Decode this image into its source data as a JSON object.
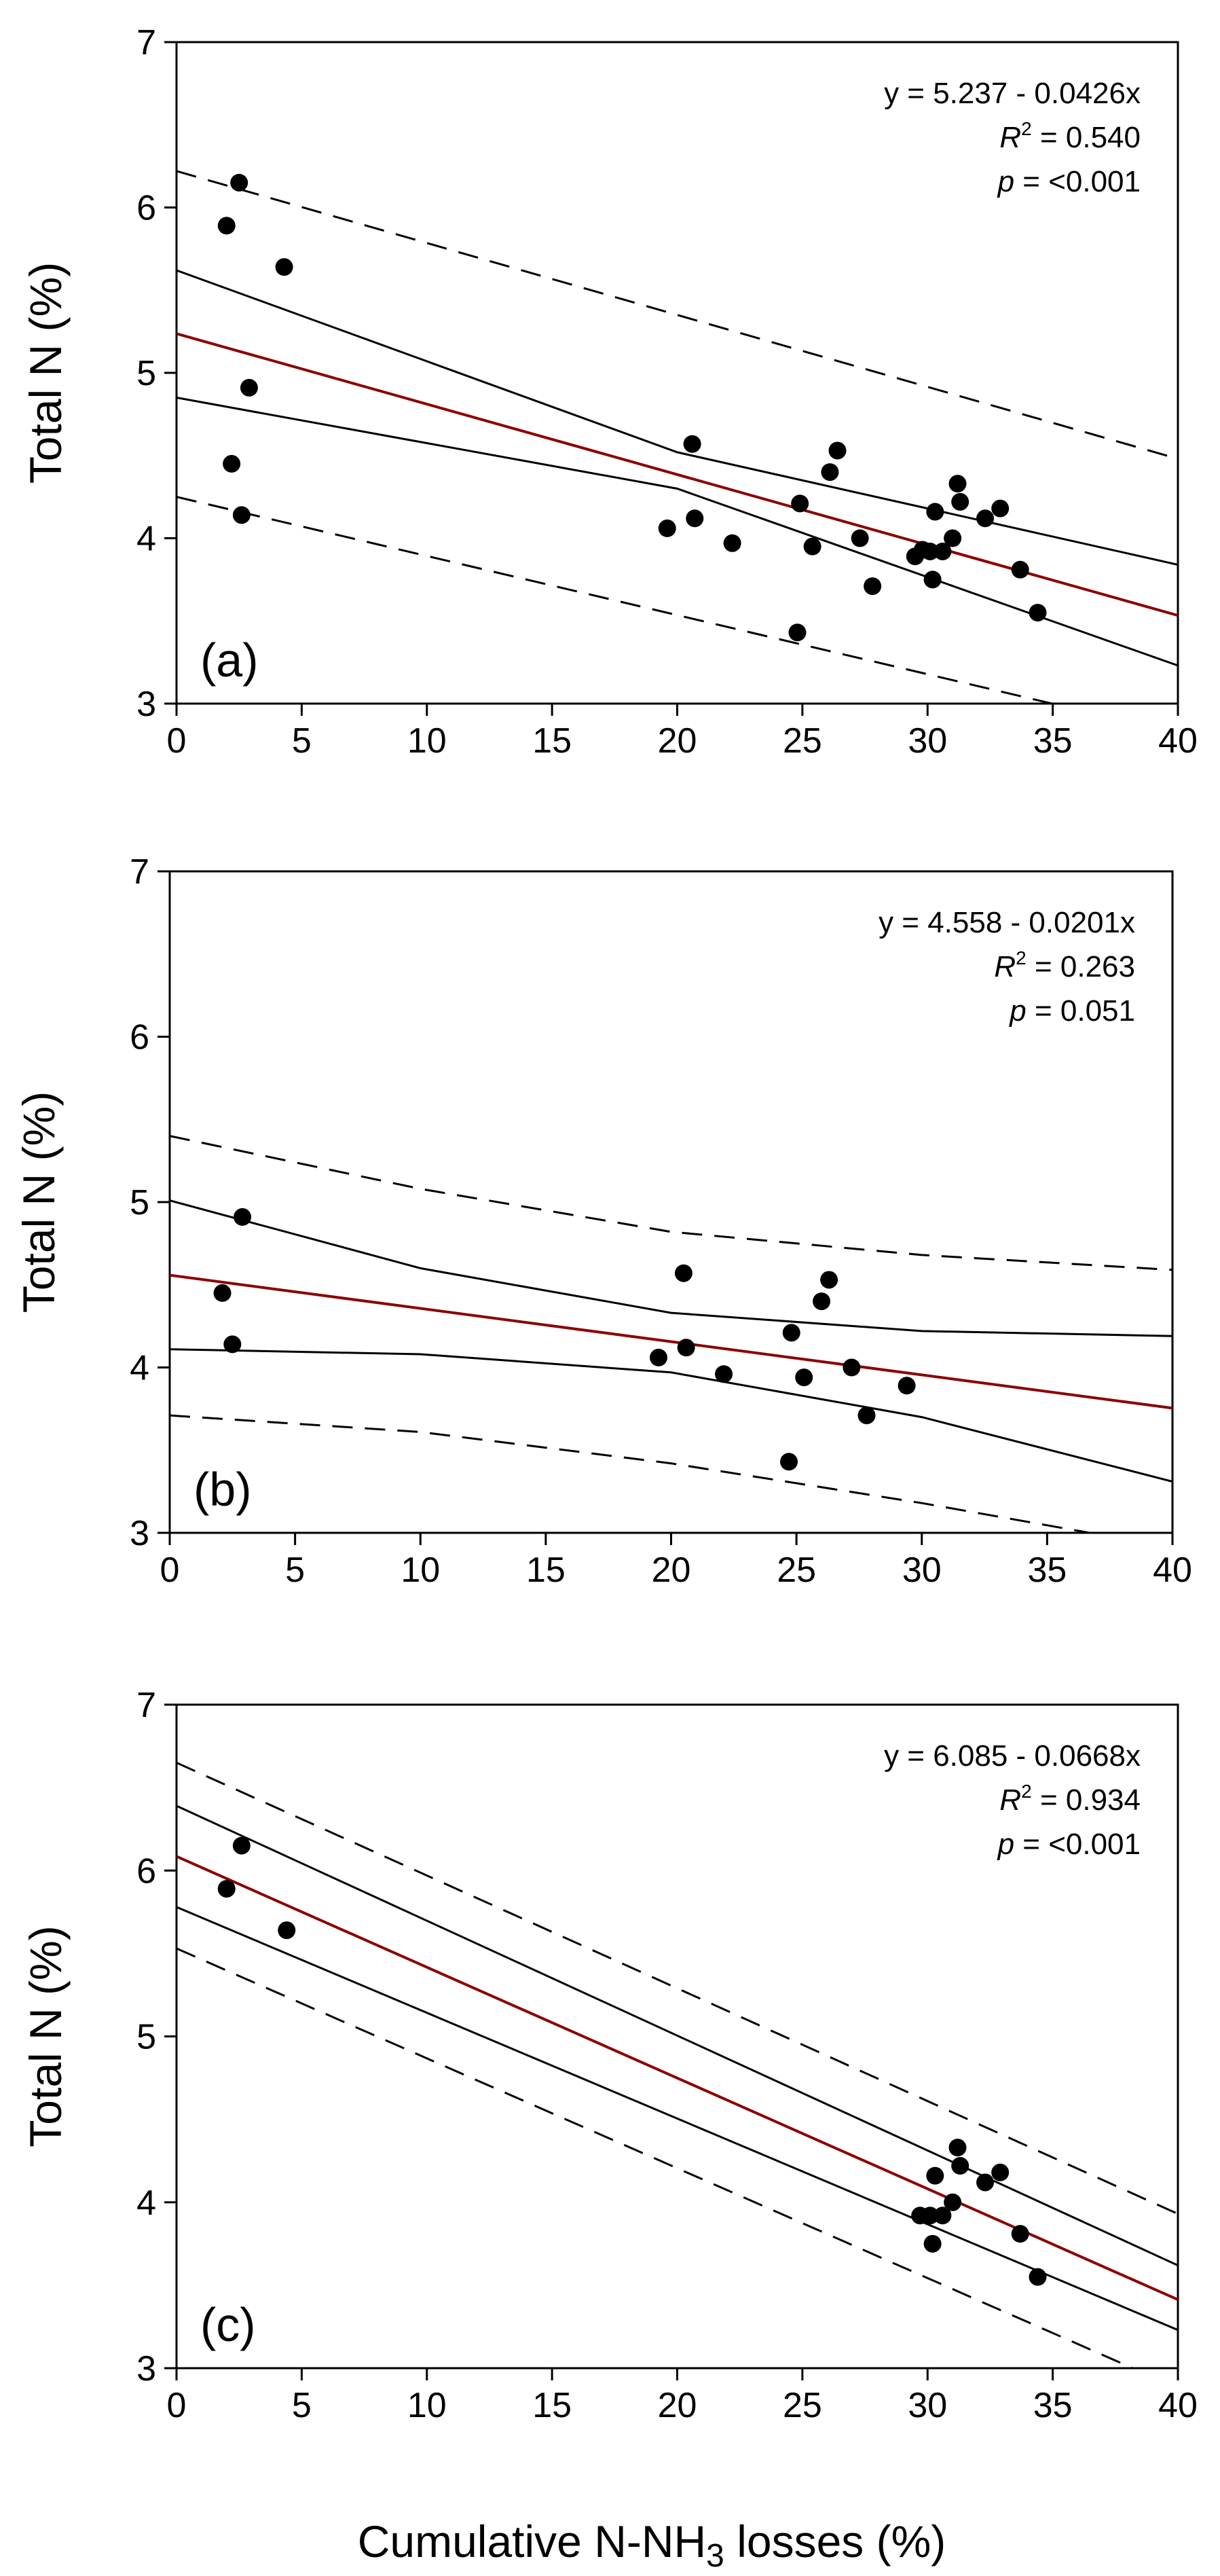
{
  "figure": {
    "xlabel_prefix": "Cumulative N-NH",
    "xlabel_sub": "3",
    "xlabel_suffix": " losses (%)"
  },
  "chart_data": [
    {
      "type": "scatter",
      "panel_label": "(a)",
      "ylabel": "Total N (%)",
      "xlim": [
        0,
        40
      ],
      "ylim": [
        3,
        7
      ],
      "xticks": [
        0,
        5,
        10,
        15,
        20,
        25,
        30,
        35,
        40
      ],
      "yticks": [
        3,
        4,
        5,
        6,
        7
      ],
      "equation": "y = 5.237 - 0.0426x",
      "r2_label": "R",
      "r2_sup": "2",
      "r2_value": "= 0.540",
      "p_label": "p",
      "p_value": "= <0.001",
      "fit": {
        "intercept": 5.237,
        "slope": -0.0426,
        "color": "#8b0000"
      },
      "confidence_band": {
        "lower": [
          [
            0,
            4.85
          ],
          [
            20,
            4.3
          ],
          [
            40,
            3.23
          ]
        ],
        "upper": [
          [
            0,
            5.62
          ],
          [
            20,
            4.52
          ],
          [
            40,
            3.84
          ]
        ]
      },
      "prediction_band": {
        "lower": [
          [
            0,
            4.25
          ],
          [
            40,
            2.82
          ]
        ],
        "upper": [
          [
            0,
            6.22
          ],
          [
            40,
            4.48
          ]
        ]
      },
      "points": [
        [
          2.0,
          5.89
        ],
        [
          2.5,
          6.15
        ],
        [
          4.3,
          5.64
        ],
        [
          2.9,
          4.91
        ],
        [
          2.2,
          4.45
        ],
        [
          2.6,
          4.14
        ],
        [
          19.6,
          4.06
        ],
        [
          20.6,
          4.57
        ],
        [
          20.7,
          4.12
        ],
        [
          22.2,
          3.97
        ],
        [
          24.8,
          3.43
        ],
        [
          24.9,
          4.21
        ],
        [
          25.4,
          3.95
        ],
        [
          26.1,
          4.4
        ],
        [
          26.4,
          4.53
        ],
        [
          27.3,
          4.0
        ],
        [
          27.8,
          3.71
        ],
        [
          29.5,
          3.89
        ],
        [
          29.8,
          3.93
        ],
        [
          30.1,
          3.92
        ],
        [
          30.2,
          3.75
        ],
        [
          30.3,
          4.16
        ],
        [
          30.6,
          3.92
        ],
        [
          31.0,
          4.0
        ],
        [
          31.2,
          4.33
        ],
        [
          31.3,
          4.22
        ],
        [
          32.3,
          4.12
        ],
        [
          32.9,
          4.18
        ],
        [
          33.7,
          3.81
        ],
        [
          34.4,
          3.55
        ]
      ]
    },
    {
      "type": "scatter",
      "panel_label": "(b)",
      "ylabel": "Total N (%)",
      "xlim": [
        0,
        40
      ],
      "ylim": [
        3,
        7
      ],
      "xticks": [
        0,
        5,
        10,
        15,
        20,
        25,
        30,
        35,
        40
      ],
      "yticks": [
        3,
        4,
        5,
        6,
        7
      ],
      "equation": "y = 4.558 - 0.0201x",
      "r2_label": "R",
      "r2_sup": "2",
      "r2_value": "= 0.263",
      "p_label": "p",
      "p_value": "= 0.051",
      "fit": {
        "intercept": 4.558,
        "slope": -0.0201,
        "color": "#8b0000"
      },
      "confidence_band": {
        "lower": [
          [
            0,
            4.11
          ],
          [
            10,
            4.08
          ],
          [
            20,
            3.97
          ],
          [
            30,
            3.7
          ],
          [
            40,
            3.31
          ]
        ],
        "upper": [
          [
            0,
            5.01
          ],
          [
            10,
            4.6
          ],
          [
            20,
            4.33
          ],
          [
            30,
            4.22
          ],
          [
            40,
            4.19
          ]
        ]
      },
      "prediction_band": {
        "lower": [
          [
            0,
            3.71
          ],
          [
            10,
            3.61
          ],
          [
            20,
            3.42
          ],
          [
            30,
            3.18
          ],
          [
            36.7,
            3.0
          ]
        ],
        "upper": [
          [
            0,
            5.4
          ],
          [
            10,
            5.08
          ],
          [
            20,
            4.82
          ],
          [
            30,
            4.68
          ],
          [
            40,
            4.59
          ]
        ]
      },
      "points": [
        [
          2.1,
          4.45
        ],
        [
          2.5,
          4.14
        ],
        [
          2.9,
          4.91
        ],
        [
          19.5,
          4.06
        ],
        [
          20.5,
          4.57
        ],
        [
          20.6,
          4.12
        ],
        [
          22.1,
          3.96
        ],
        [
          24.7,
          3.43
        ],
        [
          24.8,
          4.21
        ],
        [
          25.3,
          3.94
        ],
        [
          26.0,
          4.4
        ],
        [
          26.3,
          4.53
        ],
        [
          27.2,
          4.0
        ],
        [
          27.8,
          3.71
        ],
        [
          29.4,
          3.89
        ]
      ]
    },
    {
      "type": "scatter",
      "panel_label": "(c)",
      "ylabel": "Total N (%)",
      "xlim": [
        0,
        40
      ],
      "ylim": [
        3,
        7
      ],
      "xticks": [
        0,
        5,
        10,
        15,
        20,
        25,
        30,
        35,
        40
      ],
      "yticks": [
        3,
        4,
        5,
        6,
        7
      ],
      "equation": "y = 6.085 - 0.0668x",
      "r2_label": "R",
      "r2_sup": "2",
      "r2_value": "= 0.934",
      "p_label": "p",
      "p_value": "= <0.001",
      "fit": {
        "intercept": 6.085,
        "slope": -0.0668,
        "color": "#8b0000"
      },
      "confidence_band": {
        "lower": [
          [
            0,
            5.78
          ],
          [
            40,
            3.23
          ]
        ],
        "upper": [
          [
            0,
            6.39
          ],
          [
            40,
            3.62
          ]
        ]
      },
      "prediction_band": {
        "lower": [
          [
            0,
            5.53
          ],
          [
            38.2,
            3.0
          ]
        ],
        "upper": [
          [
            0,
            6.65
          ],
          [
            40,
            3.93
          ]
        ]
      },
      "points": [
        [
          2.0,
          5.89
        ],
        [
          2.6,
          6.15
        ],
        [
          4.4,
          5.64
        ],
        [
          29.7,
          3.92
        ],
        [
          30.1,
          3.92
        ],
        [
          30.2,
          3.75
        ],
        [
          30.3,
          4.16
        ],
        [
          30.6,
          3.92
        ],
        [
          31.0,
          4.0
        ],
        [
          31.2,
          4.33
        ],
        [
          31.3,
          4.22
        ],
        [
          32.3,
          4.12
        ],
        [
          32.9,
          4.18
        ],
        [
          33.7,
          3.81
        ],
        [
          34.4,
          3.55
        ]
      ]
    }
  ]
}
